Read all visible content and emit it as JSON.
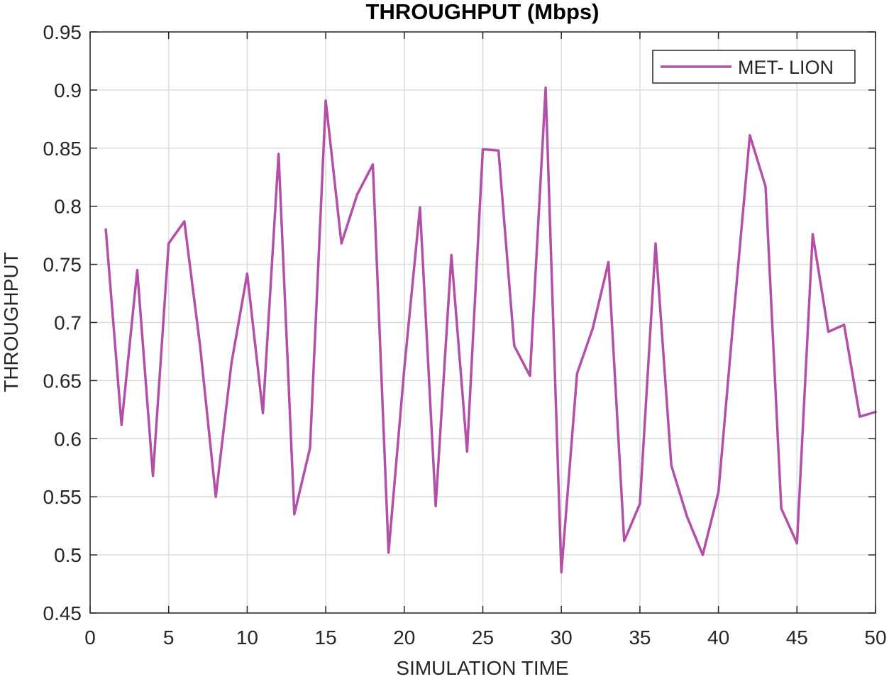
{
  "chart_data": {
    "type": "line",
    "title": "THROUGHPUT (Mbps)",
    "xlabel": "SIMULATION TIME",
    "ylabel": "THROUGHPUT",
    "xlim": [
      0,
      50
    ],
    "ylim": [
      0.45,
      0.95
    ],
    "xticks": [
      0,
      5,
      10,
      15,
      20,
      25,
      30,
      35,
      40,
      45,
      50
    ],
    "yticks": [
      0.45,
      0.5,
      0.55,
      0.6,
      0.65,
      0.7,
      0.75,
      0.8,
      0.85,
      0.9,
      0.95
    ],
    "xtick_labels": [
      "0",
      "5",
      "10",
      "15",
      "20",
      "25",
      "30",
      "35",
      "40",
      "45",
      "50"
    ],
    "ytick_labels": [
      "0.45",
      "0.5",
      "0.55",
      "0.6",
      "0.65",
      "0.7",
      "0.75",
      "0.8",
      "0.85",
      "0.9",
      "0.95"
    ],
    "grid": true,
    "legend_position": "top-right",
    "series": [
      {
        "name": "MET- LION",
        "color": "#b44fa8",
        "x": [
          1,
          2,
          3,
          4,
          5,
          6,
          7,
          8,
          9,
          10,
          11,
          12,
          13,
          14,
          15,
          16,
          17,
          18,
          19,
          20,
          21,
          22,
          23,
          24,
          25,
          26,
          27,
          28,
          29,
          30,
          31,
          32,
          33,
          34,
          35,
          36,
          37,
          38,
          39,
          40,
          41,
          42,
          43,
          44,
          45,
          46,
          47,
          48,
          49,
          50
        ],
        "y": [
          0.78,
          0.612,
          0.745,
          0.568,
          0.768,
          0.787,
          0.68,
          0.55,
          0.665,
          0.742,
          0.622,
          0.845,
          0.535,
          0.592,
          0.891,
          0.768,
          0.81,
          0.836,
          0.502,
          0.66,
          0.799,
          0.542,
          0.758,
          0.589,
          0.849,
          0.848,
          0.68,
          0.654,
          0.902,
          0.485,
          0.656,
          0.695,
          0.752,
          0.512,
          0.544,
          0.768,
          0.577,
          0.533,
          0.5,
          0.554,
          0.71,
          0.861,
          0.817,
          0.54,
          0.51,
          0.776,
          0.692,
          0.698,
          0.619,
          0.623
        ]
      }
    ]
  }
}
